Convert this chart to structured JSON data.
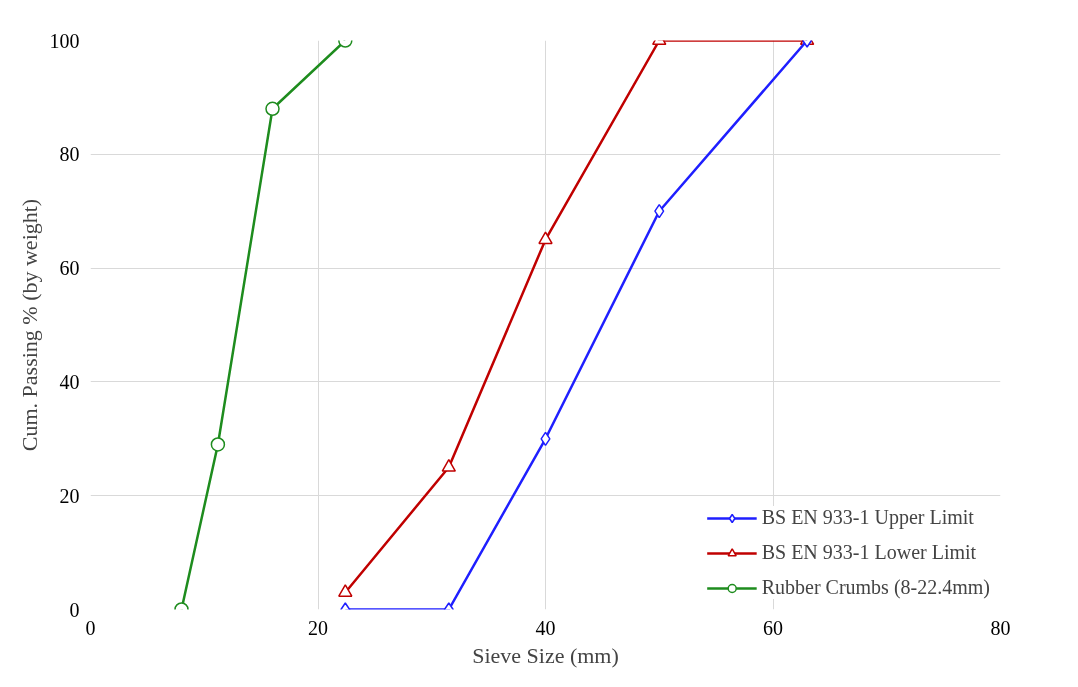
{
  "chart_data": {
    "type": "line",
    "xlabel": "Sieve Size (mm)",
    "ylabel": "Cum. Passing % (by weight)",
    "xlim": [
      0,
      80
    ],
    "xticks": [
      0,
      20,
      40,
      60,
      80
    ],
    "ylim": [
      0,
      100
    ],
    "yticks": [
      0,
      20,
      40,
      60,
      80,
      100
    ],
    "grid": true,
    "legend": "bottom right",
    "line_style": "solid",
    "series": [
      {
        "name": "BS EN 933-1 Upper Limit",
        "color": "#1f1fff",
        "marker": "diamond",
        "x": [
          22.4,
          31.5,
          40,
          50,
          63
        ],
        "values": [
          0,
          0,
          30,
          70,
          100
        ]
      },
      {
        "name": "BS EN 933-1 Lower Limit",
        "color": "#c00000",
        "marker": "triangle",
        "x": [
          22.4,
          31.5,
          40,
          50,
          63
        ],
        "values": [
          3,
          25,
          65,
          100,
          100
        ]
      },
      {
        "name": "Rubber Crumbs (8-22.4mm)",
        "color": "#1e8c1e",
        "marker": "circle",
        "x": [
          8,
          11.2,
          16,
          22.4
        ],
        "values": [
          0,
          29,
          88,
          100
        ]
      }
    ]
  }
}
